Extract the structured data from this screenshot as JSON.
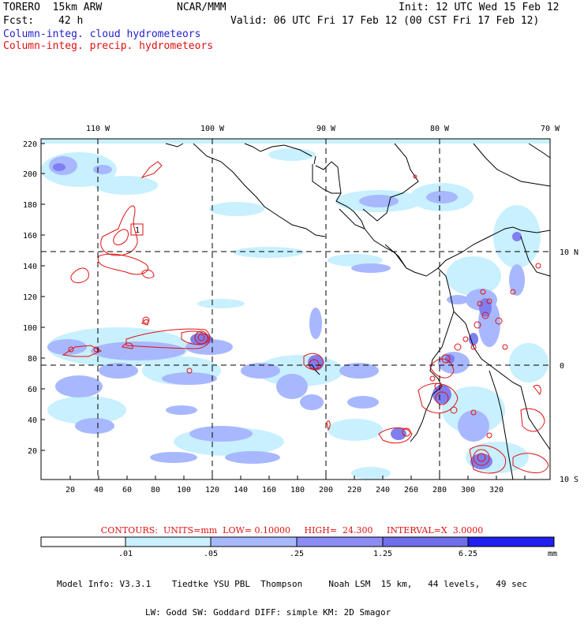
{
  "header": {
    "model_title": "TORERO  15km ARW",
    "institution": "NCAR/MMM",
    "init_time": "Init: 12 UTC Wed 15 Feb 12",
    "forecast_label": "Fcst:",
    "forecast_hours": "42 h",
    "valid_time": "Valid: 06 UTC Fri 17 Feb 12 (00 CST Fri 17 Feb 12)",
    "legend_cloud": "Column-integ. cloud hydrometeors",
    "legend_precip": "Column-integ. precip. hydrometeors"
  },
  "map": {
    "lon_labels_top": [
      "110 W",
      "100 W",
      "90 W",
      "80 W",
      "70 W"
    ],
    "lat_labels_right": [
      "10 N",
      "0",
      "10 S"
    ],
    "y_ticks": [
      "220",
      "200",
      "180",
      "160",
      "140",
      "120",
      "100",
      "80",
      "60",
      "40",
      "20"
    ],
    "x_ticks": [
      "20",
      "40",
      "60",
      "80",
      "100",
      "120",
      "140",
      "160",
      "180",
      "200",
      "220",
      "240",
      "260",
      "280",
      "300",
      "320"
    ],
    "high_marker": "1",
    "colors": {
      "land_outline": "#000000",
      "grid_dashed": "#000000",
      "precip_contour": "#e01010",
      "cloud_light": "#c8f0ff",
      "cloud_mid": "#a8b8ff",
      "cloud_strong": "#7f7ff0",
      "cloud_deep": "#5a5ae6"
    }
  },
  "contours_note": "CONTOURS:  UNITS=mm  LOW= 0.10000     HIGH=  24.300     INTERVAL=X  3.0000",
  "colorbar": {
    "tick_labels": [
      ".01",
      ".05",
      ".25",
      "1.25",
      "6.25"
    ],
    "unit": "mm",
    "colors": [
      "#ffffff",
      "#c8f0ff",
      "#a8b8ff",
      "#8c8cf5",
      "#6f6feb",
      "#2020f0"
    ]
  },
  "model_info": {
    "line1": "Model Info: V3.3.1    Tiedtke YSU PBL  Thompson     Noah LSM  15 km,   44 levels,   49 sec",
    "line2": "LW: Godd SW: Goddard DIFF: simple KM: 2D Smagor"
  }
}
